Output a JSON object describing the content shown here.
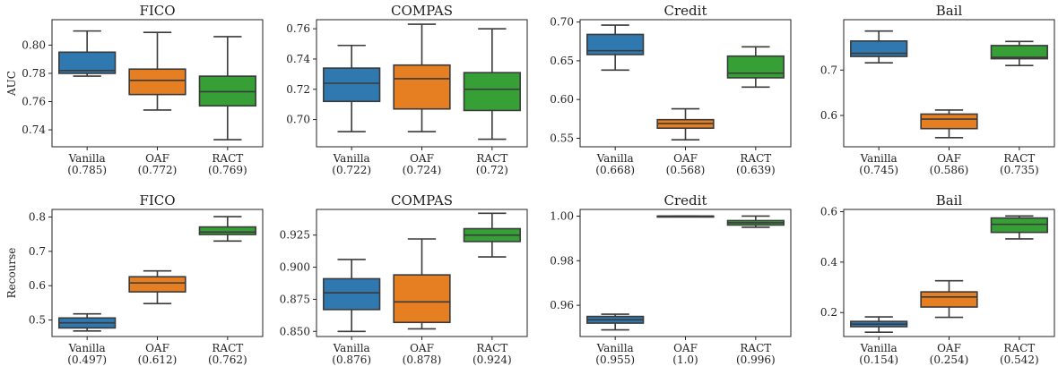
{
  "chart_data": [
    {
      "type": "box",
      "title": "FICO",
      "ylabel": "AUC",
      "ylim": [
        0.728,
        0.818
      ],
      "yticks": [
        0.74,
        0.76,
        0.78,
        0.8
      ],
      "categories": [
        "Vanilla\n(0.785)",
        "OAF\n(0.772)",
        "RACT\n(0.769)"
      ],
      "boxes": [
        {
          "min": 0.778,
          "q1": 0.78,
          "median": 0.782,
          "q3": 0.795,
          "max": 0.81
        },
        {
          "min": 0.754,
          "q1": 0.765,
          "median": 0.775,
          "q3": 0.783,
          "max": 0.809
        },
        {
          "min": 0.733,
          "q1": 0.757,
          "median": 0.767,
          "q3": 0.778,
          "max": 0.806
        }
      ]
    },
    {
      "type": "box",
      "title": "COMPAS",
      "ylabel": "",
      "ylim": [
        0.682,
        0.766
      ],
      "yticks": [
        0.7,
        0.72,
        0.74,
        0.76
      ],
      "categories": [
        "Vanilla\n(0.722)",
        "OAF\n(0.724)",
        "RACT\n(0.72)"
      ],
      "boxes": [
        {
          "min": 0.692,
          "q1": 0.712,
          "median": 0.724,
          "q3": 0.734,
          "max": 0.749
        },
        {
          "min": 0.692,
          "q1": 0.707,
          "median": 0.727,
          "q3": 0.736,
          "max": 0.763
        },
        {
          "min": 0.687,
          "q1": 0.706,
          "median": 0.72,
          "q3": 0.731,
          "max": 0.76
        }
      ]
    },
    {
      "type": "box",
      "title": "Credit",
      "ylabel": "",
      "ylim": [
        0.539,
        0.703
      ],
      "yticks": [
        0.55,
        0.6,
        0.65,
        0.7
      ],
      "categories": [
        "Vanilla\n(0.668)",
        "OAF\n(0.568)",
        "RACT\n(0.639)"
      ],
      "boxes": [
        {
          "min": 0.638,
          "q1": 0.658,
          "median": 0.663,
          "q3": 0.684,
          "max": 0.696
        },
        {
          "min": 0.548,
          "q1": 0.563,
          "median": 0.569,
          "q3": 0.574,
          "max": 0.588
        },
        {
          "min": 0.616,
          "q1": 0.628,
          "median": 0.634,
          "q3": 0.656,
          "max": 0.668
        }
      ]
    },
    {
      "type": "box",
      "title": "Bail",
      "ylabel": "",
      "ylim": [
        0.531,
        0.811
      ],
      "yticks": [
        0.6,
        0.7
      ],
      "categories": [
        "Vanilla\n(0.745)",
        "OAF\n(0.586)",
        "RACT\n(0.735)"
      ],
      "boxes": [
        {
          "min": 0.716,
          "q1": 0.73,
          "median": 0.737,
          "q3": 0.764,
          "max": 0.786
        },
        {
          "min": 0.551,
          "q1": 0.571,
          "median": 0.592,
          "q3": 0.603,
          "max": 0.612
        },
        {
          "min": 0.71,
          "q1": 0.725,
          "median": 0.728,
          "q3": 0.754,
          "max": 0.763
        }
      ]
    },
    {
      "type": "box",
      "title": "FICO",
      "ylabel": "Recourse",
      "ylim": [
        0.452,
        0.822
      ],
      "yticks": [
        0.5,
        0.6,
        0.7,
        0.8
      ],
      "categories": [
        "Vanilla\n(0.497)",
        "OAF\n(0.612)",
        "RACT\n(0.762)"
      ],
      "boxes": [
        {
          "min": 0.468,
          "q1": 0.477,
          "median": 0.492,
          "q3": 0.506,
          "max": 0.518
        },
        {
          "min": 0.548,
          "q1": 0.582,
          "median": 0.608,
          "q3": 0.626,
          "max": 0.643
        },
        {
          "min": 0.73,
          "q1": 0.749,
          "median": 0.756,
          "q3": 0.771,
          "max": 0.801
        }
      ]
    },
    {
      "type": "box",
      "title": "COMPAS",
      "ylabel": "",
      "ylim": [
        0.846,
        0.945
      ],
      "yticks": [
        0.85,
        0.875,
        0.9,
        0.925
      ],
      "categories": [
        "Vanilla\n(0.876)",
        "OAF\n(0.878)",
        "RACT\n(0.924)"
      ],
      "boxes": [
        {
          "min": 0.85,
          "q1": 0.867,
          "median": 0.88,
          "q3": 0.891,
          "max": 0.906
        },
        {
          "min": 0.852,
          "q1": 0.857,
          "median": 0.873,
          "q3": 0.894,
          "max": 0.922
        },
        {
          "min": 0.908,
          "q1": 0.92,
          "median": 0.925,
          "q3": 0.93,
          "max": 0.942
        }
      ]
    },
    {
      "type": "box",
      "title": "Credit",
      "ylabel": "",
      "ylim": [
        0.946,
        1.003
      ],
      "yticks": [
        0.96,
        0.98,
        1.0
      ],
      "categories": [
        "Vanilla\n(0.955)",
        "OAF\n(1.0)",
        "RACT\n(0.996)"
      ],
      "boxes": [
        {
          "min": 0.949,
          "q1": 0.952,
          "median": 0.9535,
          "q3": 0.955,
          "max": 0.956
        },
        {
          "min": 1.0,
          "q1": 1.0,
          "median": 1.0,
          "q3": 1.0,
          "max": 1.0
        },
        {
          "min": 0.995,
          "q1": 0.996,
          "median": 0.997,
          "q3": 0.998,
          "max": 1.0
        }
      ]
    },
    {
      "type": "box",
      "title": "Bail",
      "ylabel": "",
      "ylim": [
        0.105,
        0.609
      ],
      "yticks": [
        0.2,
        0.4,
        0.6
      ],
      "categories": [
        "Vanilla\n(0.154)",
        "OAF\n(0.254)",
        "RACT\n(0.542)"
      ],
      "boxes": [
        {
          "min": 0.122,
          "q1": 0.144,
          "median": 0.154,
          "q3": 0.165,
          "max": 0.183
        },
        {
          "min": 0.181,
          "q1": 0.222,
          "median": 0.262,
          "q3": 0.282,
          "max": 0.326
        },
        {
          "min": 0.492,
          "q1": 0.518,
          "median": 0.55,
          "q3": 0.575,
          "max": 0.583
        }
      ]
    }
  ],
  "colors": [
    "#2f78b0",
    "#e67e22",
    "#36a037"
  ],
  "edge_color": "#3a3a3a"
}
